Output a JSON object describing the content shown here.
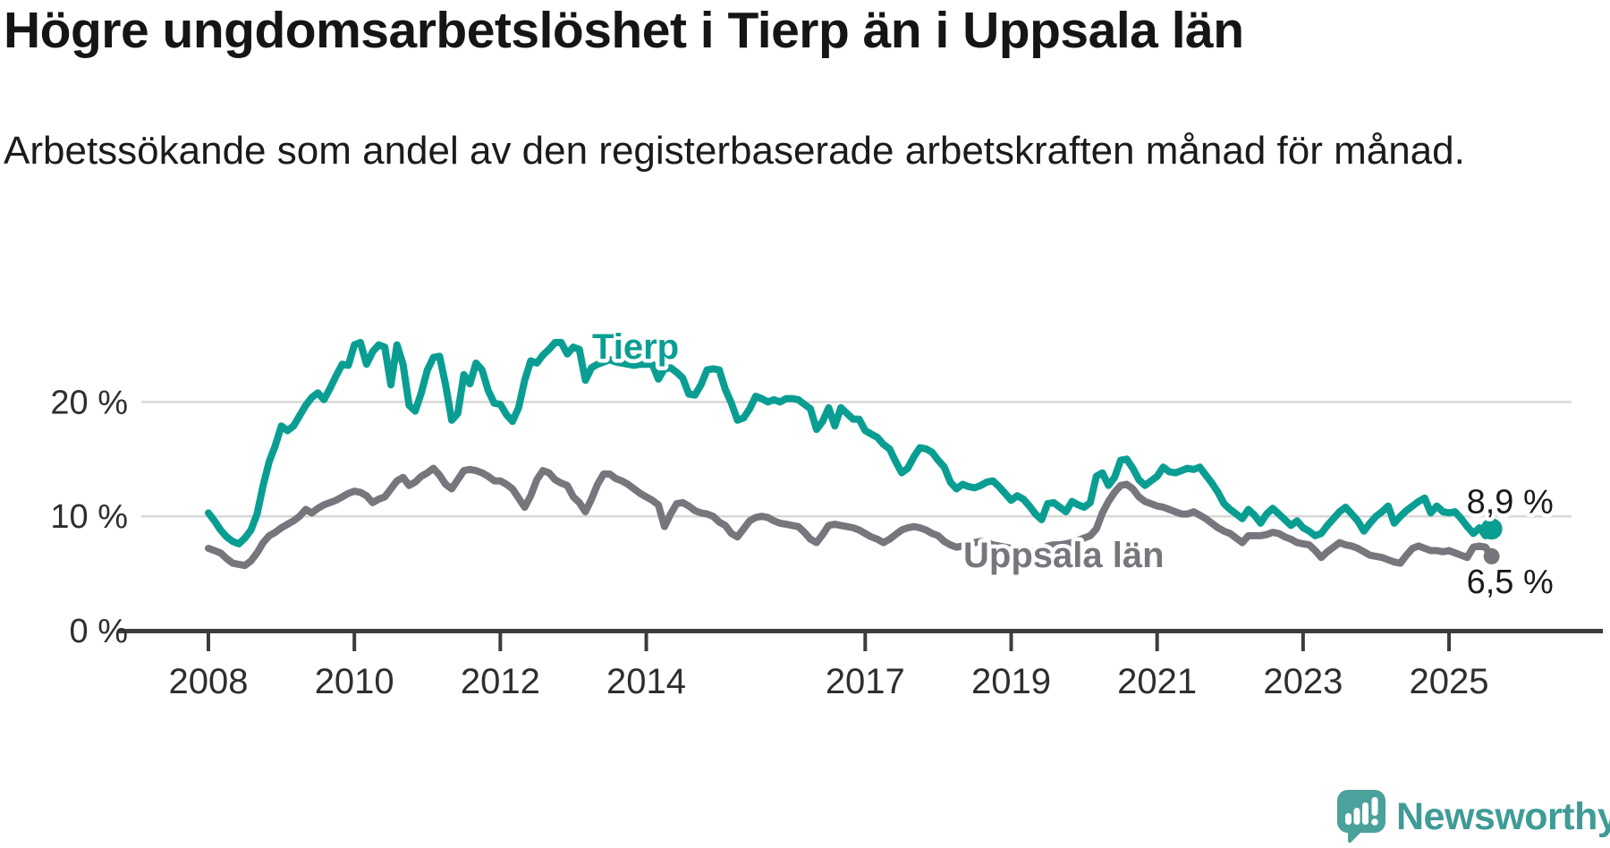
{
  "header": {
    "title": "Högre ungdomsarbetslöshet i Tierp än i Uppsala län",
    "subtitle": "Arbetssökande som andel av den registerbaserade arbetskraften månad för månad."
  },
  "footer": {
    "brand": "Newsworthy",
    "brand_color": "#3f9b96",
    "icon_color": "#4ba19b"
  },
  "chart_data": {
    "type": "line",
    "title": "Högre ungdomsarbetslöshet i Tierp än i Uppsala län",
    "subtitle": "Arbetssökande som andel av den registerbaserade arbetskraften månad för månad.",
    "unit": "%",
    "grid": "horizontal-only",
    "legend_position": "inline-labels",
    "x_axis": {
      "start": "2008-01",
      "end": "2025-08",
      "frequency": "monthly",
      "tick_years": [
        2008,
        2010,
        2012,
        2014,
        2017,
        2019,
        2021,
        2023,
        2025
      ],
      "tick_labels": [
        "2008",
        "2010",
        "2012",
        "2014",
        "2017",
        "2019",
        "2021",
        "2023",
        "2025"
      ]
    },
    "y_axis": {
      "min": 0,
      "max": 27,
      "ticks": [
        {
          "value": 0,
          "label": "0 %"
        },
        {
          "value": 10,
          "label": "10 %"
        },
        {
          "value": 20,
          "label": "20 %"
        }
      ]
    },
    "series": [
      {
        "name": "Tierp",
        "color": "#0a9e93",
        "end_value": 8.9,
        "end_label": "8,9 %",
        "values": [
          10.3,
          9.6,
          8.8,
          8.2,
          7.8,
          7.6,
          8.1,
          8.8,
          10.2,
          12.7,
          14.8,
          16.2,
          17.9,
          17.5,
          17.9,
          18.8,
          19.7,
          20.4,
          20.8,
          20.2,
          21.2,
          22.3,
          23.3,
          23.2,
          25.0,
          25.2,
          23.3,
          24.4,
          25.0,
          24.8,
          21.5,
          25.0,
          23.3,
          19.7,
          19.2,
          20.8,
          22.8,
          23.9,
          24.0,
          21.5,
          18.4,
          19.0,
          22.4,
          21.6,
          23.4,
          22.8,
          21.0,
          19.9,
          19.8,
          18.9,
          18.3,
          19.5,
          21.9,
          23.6,
          23.4,
          24.1,
          24.6,
          25.2,
          25.2,
          24.2,
          24.8,
          24.6,
          21.9,
          23.0,
          23.3,
          23.5,
          23.7,
          23.5,
          23.4,
          23.3,
          23.2,
          23.3,
          23.3,
          23.3,
          22.0,
          22.9,
          23.0,
          22.6,
          22.1,
          20.7,
          20.6,
          21.5,
          22.8,
          22.9,
          22.8,
          21.1,
          19.9,
          18.4,
          18.6,
          19.4,
          20.5,
          20.3,
          20.0,
          20.2,
          20.0,
          20.3,
          20.3,
          20.2,
          19.8,
          19.4,
          17.6,
          18.3,
          19.5,
          17.9,
          19.5,
          19.0,
          18.5,
          18.5,
          17.5,
          17.2,
          16.9,
          16.3,
          15.9,
          14.8,
          13.8,
          14.2,
          15.2,
          16.0,
          15.9,
          15.6,
          14.9,
          14.3,
          13.0,
          12.4,
          12.8,
          12.6,
          12.5,
          12.7,
          13.0,
          13.1,
          12.6,
          12.0,
          11.4,
          11.8,
          11.5,
          10.9,
          10.2,
          9.7,
          11.1,
          11.2,
          10.8,
          10.4,
          11.3,
          11.0,
          10.8,
          11.2,
          13.5,
          13.8,
          12.7,
          13.4,
          14.9,
          15.0,
          14.2,
          13.2,
          12.7,
          13.1,
          13.5,
          14.3,
          13.9,
          13.8,
          14.0,
          14.2,
          14.1,
          14.3,
          13.6,
          12.9,
          12.1,
          11.1,
          10.6,
          10.2,
          9.8,
          10.6,
          10.1,
          9.4,
          10.2,
          10.7,
          10.2,
          9.7,
          9.2,
          9.6,
          9.0,
          8.7,
          8.3,
          8.5,
          9.2,
          9.8,
          10.4,
          10.8,
          10.2,
          9.6,
          8.7,
          9.4,
          10.0,
          10.4,
          10.9,
          9.4,
          10.0,
          10.5,
          10.9,
          11.3,
          11.6,
          10.3,
          10.9,
          10.4,
          10.3,
          10.4,
          9.8,
          9.1,
          8.5,
          9.0,
          8.3,
          8.9
        ]
      },
      {
        "name": "Uppsala län",
        "color": "#76767c",
        "end_value": 6.5,
        "end_label": "6,5 %",
        "values": [
          7.2,
          7.0,
          6.8,
          6.3,
          5.9,
          5.8,
          5.7,
          6.1,
          6.8,
          7.7,
          8.3,
          8.6,
          9.0,
          9.3,
          9.6,
          10.0,
          10.6,
          10.3,
          10.7,
          11.0,
          11.2,
          11.4,
          11.7,
          12.0,
          12.2,
          12.1,
          11.8,
          11.2,
          11.5,
          11.7,
          12.4,
          13.1,
          13.4,
          12.7,
          13.0,
          13.5,
          13.8,
          14.2,
          13.6,
          12.8,
          12.4,
          13.2,
          14.0,
          14.1,
          14.0,
          13.8,
          13.5,
          13.1,
          13.1,
          12.8,
          12.4,
          11.6,
          10.8,
          11.8,
          13.2,
          14.0,
          13.8,
          13.2,
          12.9,
          12.7,
          11.7,
          11.2,
          10.4,
          11.5,
          12.8,
          13.7,
          13.7,
          13.3,
          13.1,
          12.8,
          12.4,
          12.0,
          11.7,
          11.4,
          11.0,
          9.1,
          10.2,
          11.1,
          11.2,
          10.9,
          10.5,
          10.3,
          10.2,
          10.0,
          9.5,
          9.2,
          8.5,
          8.2,
          8.9,
          9.6,
          9.9,
          10.0,
          9.9,
          9.6,
          9.4,
          9.3,
          9.2,
          9.1,
          8.6,
          8.0,
          7.7,
          8.4,
          9.2,
          9.3,
          9.2,
          9.1,
          9.0,
          8.8,
          8.5,
          8.2,
          8.0,
          7.7,
          8.0,
          8.4,
          8.8,
          9.0,
          9.1,
          9.0,
          8.8,
          8.5,
          8.3,
          7.8,
          7.5,
          7.3,
          7.4,
          7.5,
          7.7,
          7.8,
          7.7,
          7.5,
          7.4,
          7.3,
          7.2,
          7.1,
          7.0,
          6.9,
          7.0,
          7.1,
          7.4,
          7.5,
          7.5,
          7.6,
          7.7,
          7.9,
          8.1,
          8.3,
          8.9,
          10.3,
          11.3,
          12.1,
          12.7,
          12.8,
          12.4,
          11.7,
          11.3,
          11.1,
          10.9,
          10.8,
          10.6,
          10.4,
          10.2,
          10.2,
          10.4,
          10.1,
          9.8,
          9.4,
          9.0,
          8.7,
          8.5,
          8.1,
          7.7,
          8.3,
          8.3,
          8.3,
          8.4,
          8.6,
          8.5,
          8.2,
          8.0,
          7.7,
          7.6,
          7.5,
          7.0,
          6.4,
          6.9,
          7.3,
          7.7,
          7.5,
          7.4,
          7.2,
          6.9,
          6.6,
          6.5,
          6.4,
          6.2,
          6.0,
          5.9,
          6.6,
          7.2,
          7.4,
          7.2,
          7.0,
          7.0,
          6.9,
          7.0,
          6.8,
          6.6,
          6.4,
          7.3,
          7.4,
          7.3,
          6.5
        ]
      }
    ]
  }
}
